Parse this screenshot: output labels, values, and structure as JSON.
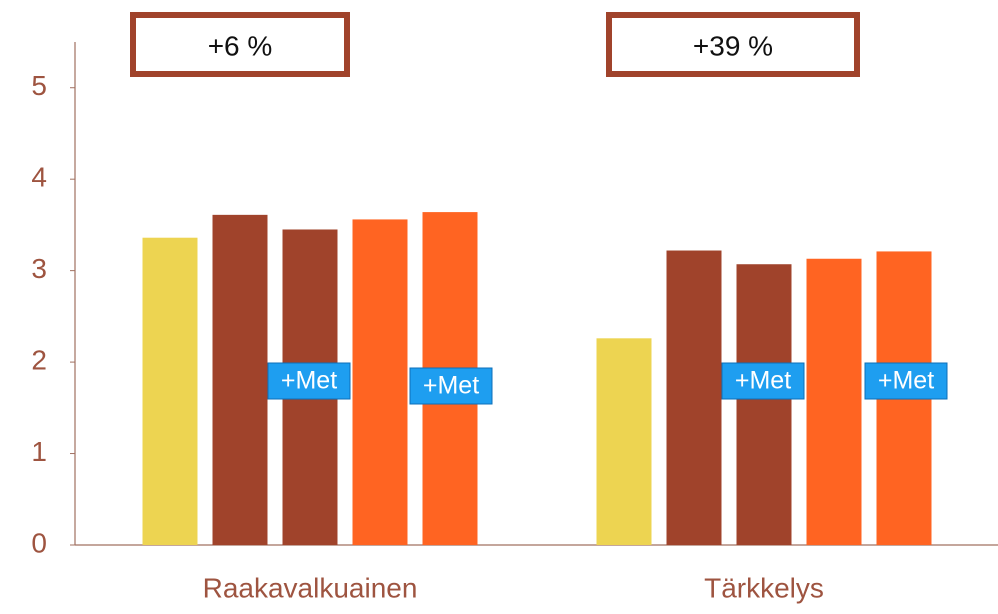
{
  "chart_data": {
    "type": "bar",
    "categories": [
      "Raakavalkuainen",
      "Tärkkelys"
    ],
    "series": [
      {
        "color": "#EDD451",
        "values": [
          3.36,
          2.26
        ]
      },
      {
        "color": "#A0432B",
        "values": [
          3.61,
          3.22
        ]
      },
      {
        "color": "#A0432B",
        "values": [
          3.45,
          3.07
        ]
      },
      {
        "color": "#FF6422",
        "values": [
          3.56,
          3.13
        ]
      },
      {
        "color": "#FF6422",
        "values": [
          3.64,
          3.21
        ]
      }
    ],
    "ylim": [
      0,
      5.5
    ],
    "yticks": [
      0,
      1,
      2,
      3,
      4,
      5
    ],
    "grid": false,
    "annotations": [
      "+6 %",
      "+39 %"
    ],
    "labels": [
      "+Met",
      "+Met",
      "+Met",
      "+Met"
    ]
  }
}
